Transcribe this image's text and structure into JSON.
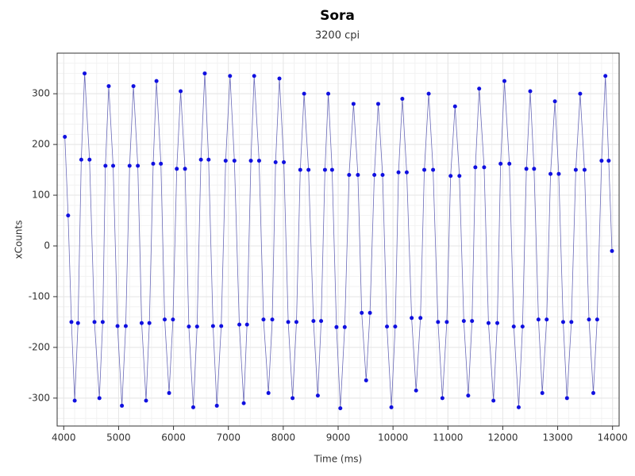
{
  "chart_data": {
    "type": "line",
    "title": "Sora",
    "subtitle": "3200 cpi",
    "x_label": "Time (ms)",
    "y_label": "xCounts",
    "xlim": [
      3880,
      14120
    ],
    "ylim": [
      -355,
      380
    ],
    "xticks": [
      4000,
      5000,
      6000,
      7000,
      8000,
      9000,
      10000,
      11000,
      12000,
      13000,
      14000
    ],
    "yticks": [
      -300,
      -200,
      -100,
      0,
      100,
      200,
      300
    ],
    "grid": true,
    "markers": true,
    "series": [
      {
        "color": "#1010e0",
        "x": [
          4020,
          4080,
          4140,
          4200,
          4260,
          4320,
          4380,
          4470,
          4560,
          4650,
          4710,
          4760,
          4820,
          4900,
          4980,
          5060,
          5130,
          5200,
          5270,
          5350,
          5420,
          5500,
          5560,
          5630,
          5690,
          5770,
          5840,
          5920,
          5990,
          6060,
          6130,
          6210,
          6280,
          6360,
          6430,
          6500,
          6570,
          6640,
          6720,
          6790,
          6870,
          6950,
          7030,
          7110,
          7200,
          7280,
          7340,
          7410,
          7470,
          7560,
          7640,
          7730,
          7800,
          7860,
          7930,
          8010,
          8090,
          8170,
          8240,
          8310,
          8380,
          8460,
          8550,
          8630,
          8690,
          8760,
          8820,
          8890,
          8970,
          9040,
          9120,
          9200,
          9280,
          9360,
          9430,
          9510,
          9580,
          9660,
          9730,
          9810,
          9890,
          9970,
          10040,
          10100,
          10170,
          10250,
          10340,
          10420,
          10500,
          10570,
          10650,
          10730,
          10820,
          10900,
          10980,
          11050,
          11130,
          11210,
          11290,
          11370,
          11440,
          11500,
          11570,
          11660,
          11740,
          11830,
          11900,
          11960,
          12030,
          12120,
          12200,
          12290,
          12360,
          12430,
          12500,
          12570,
          12650,
          12720,
          12800,
          12870,
          12950,
          13020,
          13100,
          13170,
          13250,
          13330,
          13410,
          13490,
          13570,
          13650,
          13720,
          13800,
          13870,
          13930,
          13990
        ],
        "values": [
          215,
          60,
          -150,
          -305,
          -152,
          170,
          340,
          170,
          -150,
          -300,
          -150,
          158,
          315,
          158,
          -158,
          -315,
          -158,
          158,
          315,
          158,
          -152,
          -305,
          -152,
          162,
          325,
          162,
          -145,
          -290,
          -145,
          152,
          305,
          152,
          -159,
          -318,
          -159,
          170,
          340,
          170,
          -158,
          -315,
          -158,
          168,
          335,
          168,
          -155,
          -310,
          -155,
          168,
          335,
          168,
          -145,
          -290,
          -145,
          165,
          330,
          165,
          -150,
          -300,
          -150,
          150,
          300,
          150,
          -148,
          -295,
          -148,
          150,
          300,
          150,
          -160,
          -320,
          -160,
          140,
          280,
          140,
          -132,
          -265,
          -132,
          140,
          280,
          140,
          -159,
          -318,
          -159,
          145,
          290,
          145,
          -142,
          -285,
          -142,
          150,
          300,
          150,
          -150,
          -300,
          -150,
          138,
          275,
          138,
          -148,
          -295,
          -148,
          155,
          310,
          155,
          -152,
          -305,
          -152,
          162,
          325,
          162,
          -159,
          -318,
          -159,
          152,
          305,
          152,
          -145,
          -290,
          -145,
          142,
          285,
          142,
          -150,
          -300,
          -150,
          150,
          300,
          150,
          -145,
          -290,
          -145,
          168,
          335,
          168,
          -10
        ]
      }
    ]
  }
}
